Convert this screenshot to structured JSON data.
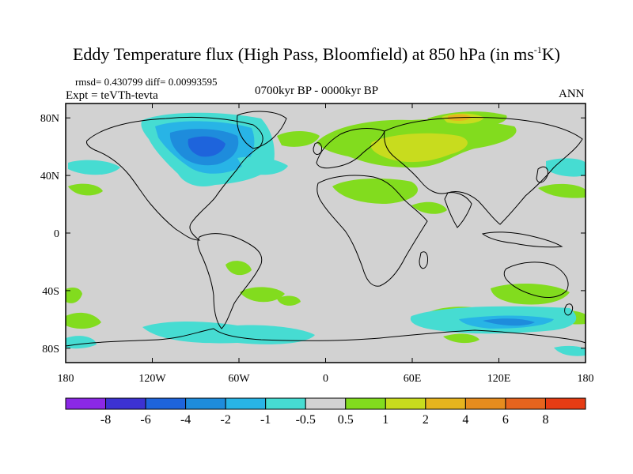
{
  "title": {
    "main": "Eddy Temperature flux (High Pass, Bloomfield) at 850 hPa (in ms",
    "exponent": "-1",
    "end": "K)"
  },
  "subtitle": {
    "stats": "rmsd= 0.430799 diff= 0.00993595",
    "experiment": "Expt = teVTh-tevta",
    "period": "0700kyr BP - 0000kyr BP",
    "season": "ANN"
  },
  "map": {
    "x_ticks": [
      "180",
      "120W",
      "60W",
      "0",
      "60E",
      "120E",
      "180"
    ],
    "y_ticks": [
      "80N",
      "40N",
      "0",
      "40S",
      "80S"
    ],
    "lon_range": [
      -180,
      180
    ],
    "lat_range": [
      -90,
      90
    ],
    "background_color": "#d2d2d2"
  },
  "colorbar": {
    "labels": [
      "-8",
      "-6",
      "-4",
      "-2",
      "-1",
      "-0.5",
      "0.5",
      "1",
      "2",
      "4",
      "6",
      "8"
    ],
    "colors": [
      "#8b28e6",
      "#3c32d2",
      "#1e64dc",
      "#1e8cdc",
      "#28b4e6",
      "#46dcd2",
      "#d2d2d2",
      "#82dc1e",
      "#c8dc1e",
      "#e6b41e",
      "#e68c1e",
      "#e6641e",
      "#e63c14"
    ]
  },
  "colors": {
    "cyan": "#46dcd2",
    "light_blue": "#28b4e6",
    "mid_blue": "#1e8cdc",
    "dark_blue": "#1e64dc",
    "green": "#82dc1e",
    "yellow_green": "#c8dc1e",
    "orange": "#e6b41e"
  }
}
